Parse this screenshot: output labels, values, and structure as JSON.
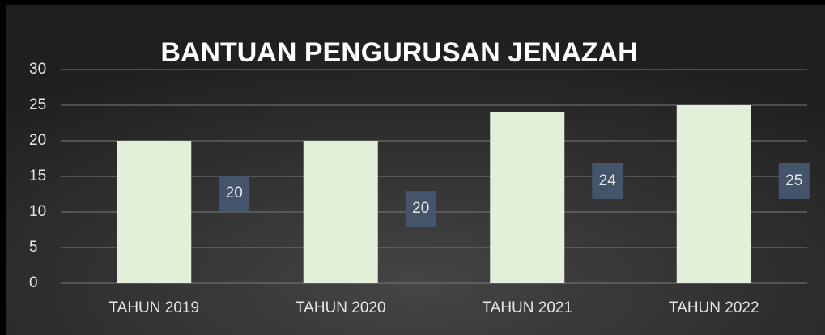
{
  "chart_data": {
    "type": "bar",
    "title": "BANTUAN PENGURUSAN JENAZAH",
    "categories": [
      "TAHUN 2019",
      "TAHUN 2020",
      "TAHUN 2021",
      "TAHUN 2022"
    ],
    "values": [
      20,
      20,
      24,
      25
    ],
    "color": "#e2efd9",
    "ylim": [
      0,
      30
    ],
    "yticks": [
      0,
      5,
      10,
      15,
      20,
      25,
      30
    ],
    "grid": true
  }
}
